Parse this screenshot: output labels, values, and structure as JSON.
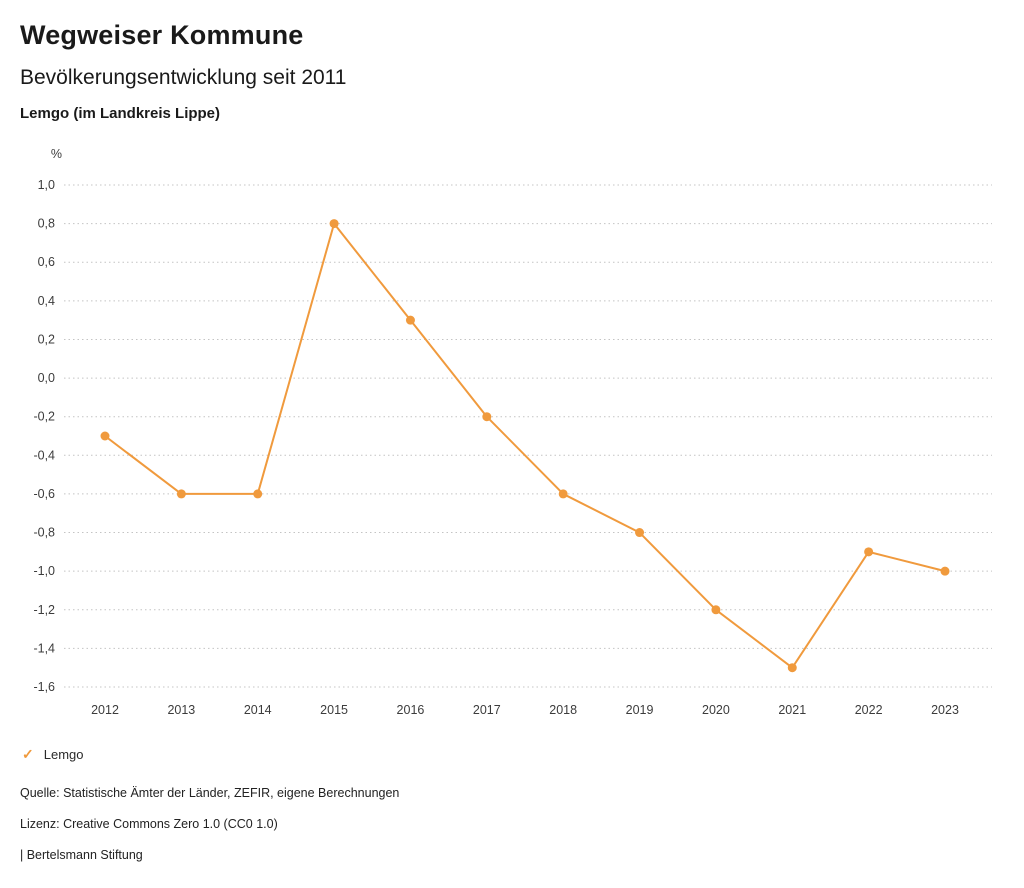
{
  "header": {
    "title": "Wegweiser Kommune",
    "subtitle": "Bevölkerungsentwicklung seit 2011",
    "region": "Lemgo (im Landkreis Lippe)"
  },
  "chart_data": {
    "type": "line",
    "title": "Bevölkerungsentwicklung seit 2011",
    "unit_label": "%",
    "categories": [
      "2012",
      "2013",
      "2014",
      "2015",
      "2016",
      "2017",
      "2018",
      "2019",
      "2020",
      "2021",
      "2022",
      "2023"
    ],
    "series": [
      {
        "name": "Lemgo",
        "values": [
          -0.3,
          -0.6,
          -0.6,
          0.8,
          0.3,
          -0.2,
          -0.6,
          -0.8,
          -1.2,
          -1.5,
          -0.9,
          -1.0
        ],
        "color": "#F09A3D"
      }
    ],
    "ylim": [
      -1.6,
      1.0
    ],
    "ytick_step": 0.2,
    "ytick_labels": [
      "1,0",
      "0,8",
      "0,6",
      "0,4",
      "0,2",
      "0,0",
      "-0,2",
      "-0,4",
      "-0,6",
      "-0,8",
      "-1,0",
      "-1,2",
      "-1,4",
      "-1,6"
    ],
    "grid": "dotted-horizontal",
    "legend_position": "bottom-left"
  },
  "legend": {
    "items": [
      {
        "label": "Lemgo",
        "color": "#F09A3D",
        "icon": "check"
      }
    ]
  },
  "footer": {
    "source": "Quelle: Statistische Ämter der Länder, ZEFIR, eigene Berechnungen",
    "license": "Lizenz: Creative Commons Zero 1.0 (CC0 1.0)",
    "attribution": "| Bertelsmann Stiftung"
  }
}
